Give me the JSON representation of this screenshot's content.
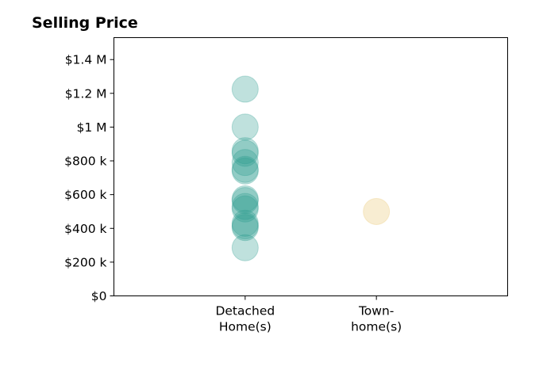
{
  "chart_data": {
    "type": "scatter",
    "title": "Selling Price",
    "xlabel": "",
    "ylabel": "",
    "categories": [
      {
        "lines": [
          "Detached",
          "Home(s)"
        ]
      },
      {
        "lines": [
          "Town-",
          "home(s)"
        ]
      }
    ],
    "ylim": [
      0,
      1530000
    ],
    "yticks": [
      {
        "value": 0,
        "label": "$0"
      },
      {
        "value": 200000,
        "label": "$200 k"
      },
      {
        "value": 400000,
        "label": "$400 k"
      },
      {
        "value": 600000,
        "label": "$600 k"
      },
      {
        "value": 800000,
        "label": "$800 k"
      },
      {
        "value": 1000000,
        "label": "$1 M"
      },
      {
        "value": 1200000,
        "label": "$1.2 M"
      },
      {
        "value": 1400000,
        "label": "$1.4 M"
      }
    ],
    "xlim": [
      -1,
      2
    ],
    "grid": false,
    "series": [
      {
        "color": "#2a9d8f",
        "category_index": 0,
        "values": [
          1225000,
          1000000,
          860000,
          845000,
          790000,
          750000,
          740000,
          575000,
          565000,
          530000,
          515000,
          430000,
          415000,
          405000,
          285000
        ]
      },
      {
        "color": "#e9c46a",
        "category_index": 1,
        "values": [
          500000
        ]
      }
    ]
  }
}
